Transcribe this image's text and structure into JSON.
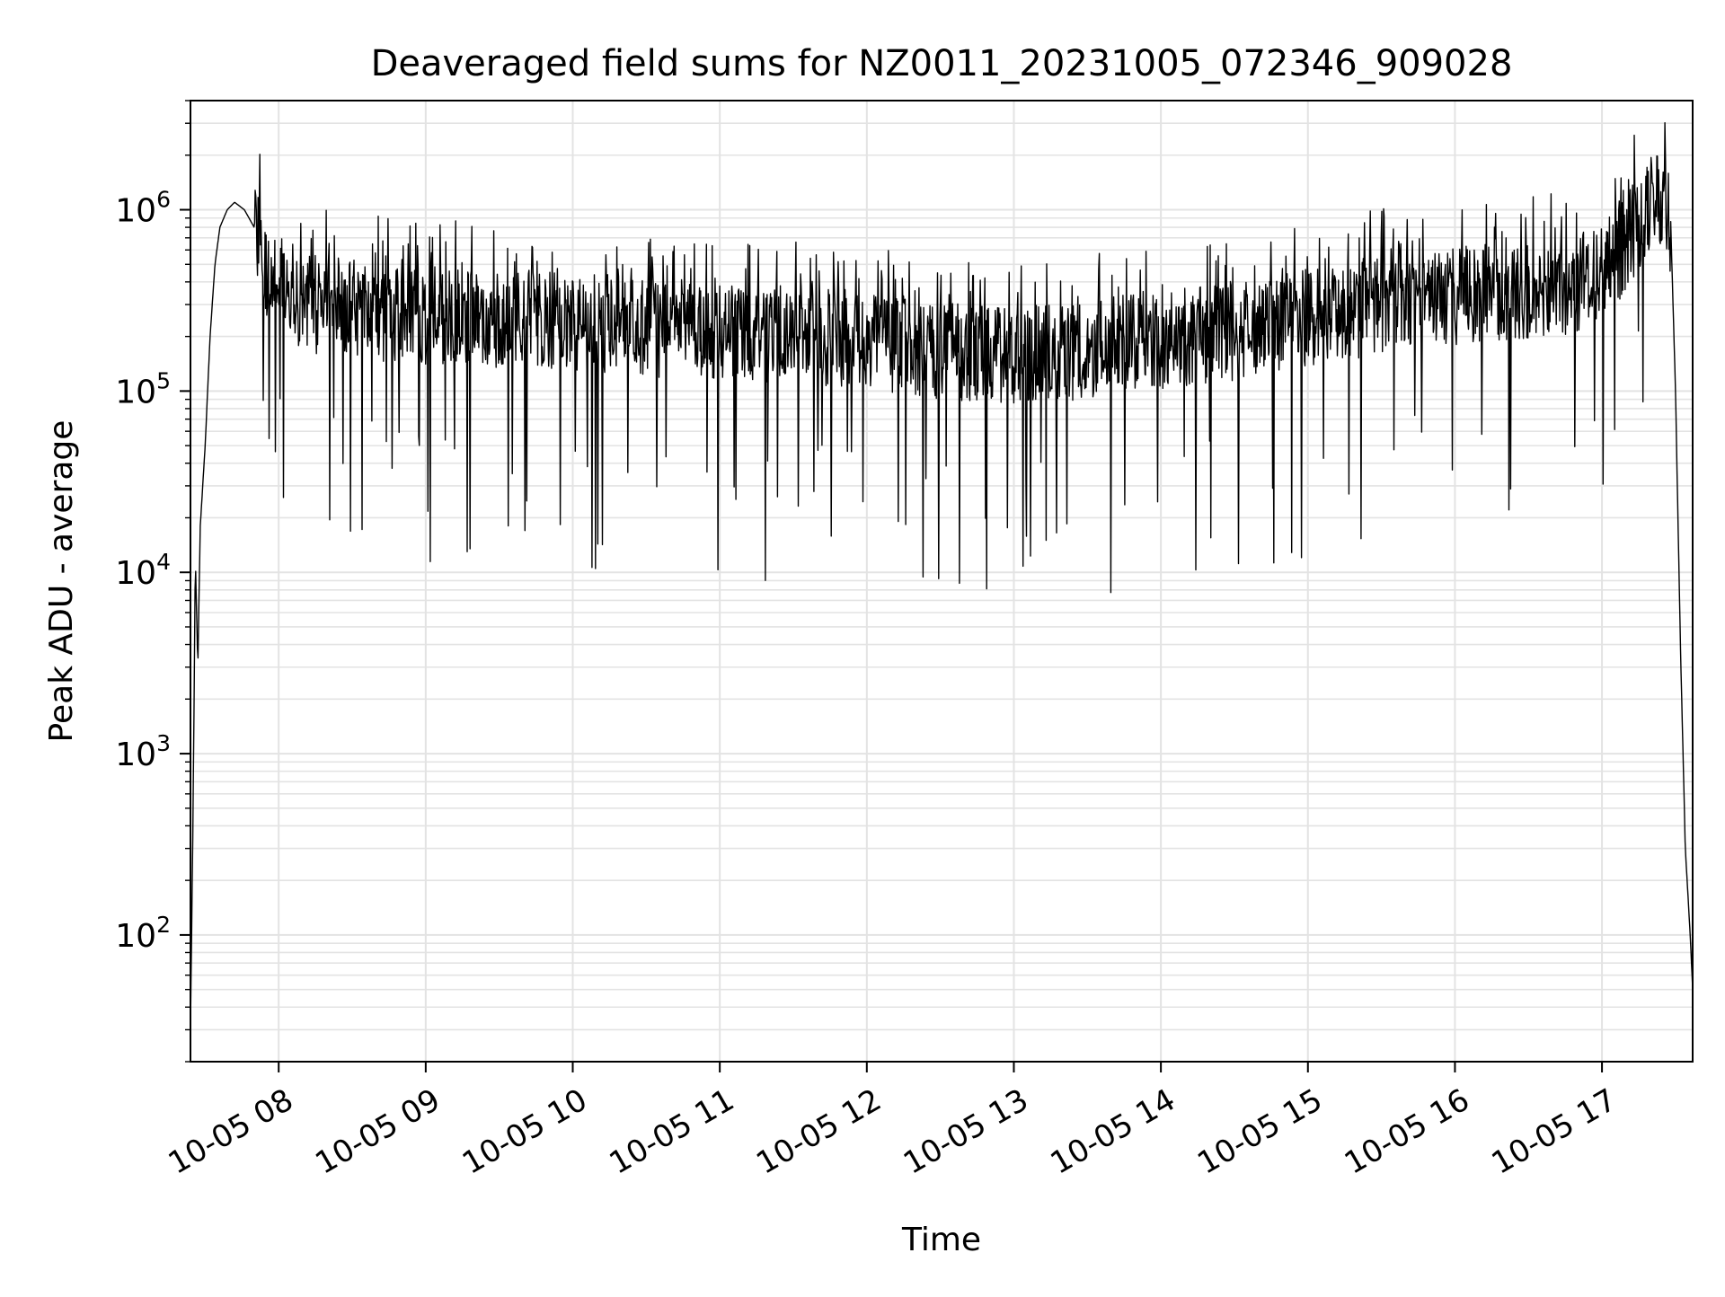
{
  "chart_data": {
    "type": "line",
    "title": "Deaveraged field sums for NZ0011_20231005_072346_909028",
    "xlabel": "Time",
    "ylabel": "Peak ADU - average",
    "y_scale": "log",
    "ylim": [
      20,
      4000000
    ],
    "xlim": [
      "2023-10-05 07:24",
      "2023-10-05 17:37"
    ],
    "grid": true,
    "legend": "none",
    "x_ticks": [
      "10-05 08",
      "10-05 09",
      "10-05 10",
      "10-05 11",
      "10-05 12",
      "10-05 13",
      "10-05 14",
      "10-05 15",
      "10-05 16",
      "10-05 17"
    ],
    "y_ticks": [
      {
        "value": 100,
        "base": "10",
        "exp": "2"
      },
      {
        "value": 1000,
        "base": "10",
        "exp": "3"
      },
      {
        "value": 10000,
        "base": "10",
        "exp": "4"
      },
      {
        "value": 100000,
        "base": "10",
        "exp": "5"
      },
      {
        "value": 1000000,
        "base": "10",
        "exp": "6"
      }
    ],
    "series": [
      {
        "color": "#000000",
        "x": [
          "2023-10-05 07:24",
          "2023-10-05 07:25",
          "2023-10-05 07:26",
          "2023-10-05 07:27",
          "2023-10-05 07:28",
          "2023-10-05 07:30",
          "2023-10-05 07:32",
          "2023-10-05 07:34",
          "2023-10-05 07:36",
          "2023-10-05 07:39",
          "2023-10-05 07:42",
          "2023-10-05 07:46",
          "2023-10-05 07:50",
          "2023-10-05 07:55",
          "2023-10-05 08:00",
          "2023-10-05 08:15",
          "2023-10-05 08:30",
          "2023-10-05 09:00",
          "2023-10-05 09:30",
          "2023-10-05 10:00",
          "2023-10-05 10:30",
          "2023-10-05 11:00",
          "2023-10-05 11:30",
          "2023-10-05 12:00",
          "2023-10-05 12:30",
          "2023-10-05 13:00",
          "2023-10-05 13:30",
          "2023-10-05 14:00",
          "2023-10-05 14:30",
          "2023-10-05 15:00",
          "2023-10-05 15:30",
          "2023-10-05 16:00",
          "2023-10-05 16:20",
          "2023-10-05 16:40",
          "2023-10-05 16:50",
          "2023-10-05 17:00",
          "2023-10-05 17:10",
          "2023-10-05 17:15",
          "2023-10-05 17:20",
          "2023-10-05 17:25",
          "2023-10-05 17:28",
          "2023-10-05 17:30",
          "2023-10-05 17:32",
          "2023-10-05 17:34",
          "2023-10-05 17:36",
          "2023-10-05 17:37"
        ],
        "y": [
          30,
          400,
          12000,
          3000,
          18000,
          50000,
          200000,
          500000,
          800000,
          1000000,
          1100000,
          1000000,
          800000,
          500000,
          400000,
          320000,
          300000,
          280000,
          270000,
          260000,
          240000,
          230000,
          220000,
          200000,
          180000,
          170000,
          180000,
          200000,
          230000,
          270000,
          320000,
          350000,
          380000,
          400000,
          420000,
          500000,
          700000,
          900000,
          1100000,
          1200000,
          900000,
          100000,
          4000,
          300,
          100,
          50
        ]
      }
    ]
  }
}
